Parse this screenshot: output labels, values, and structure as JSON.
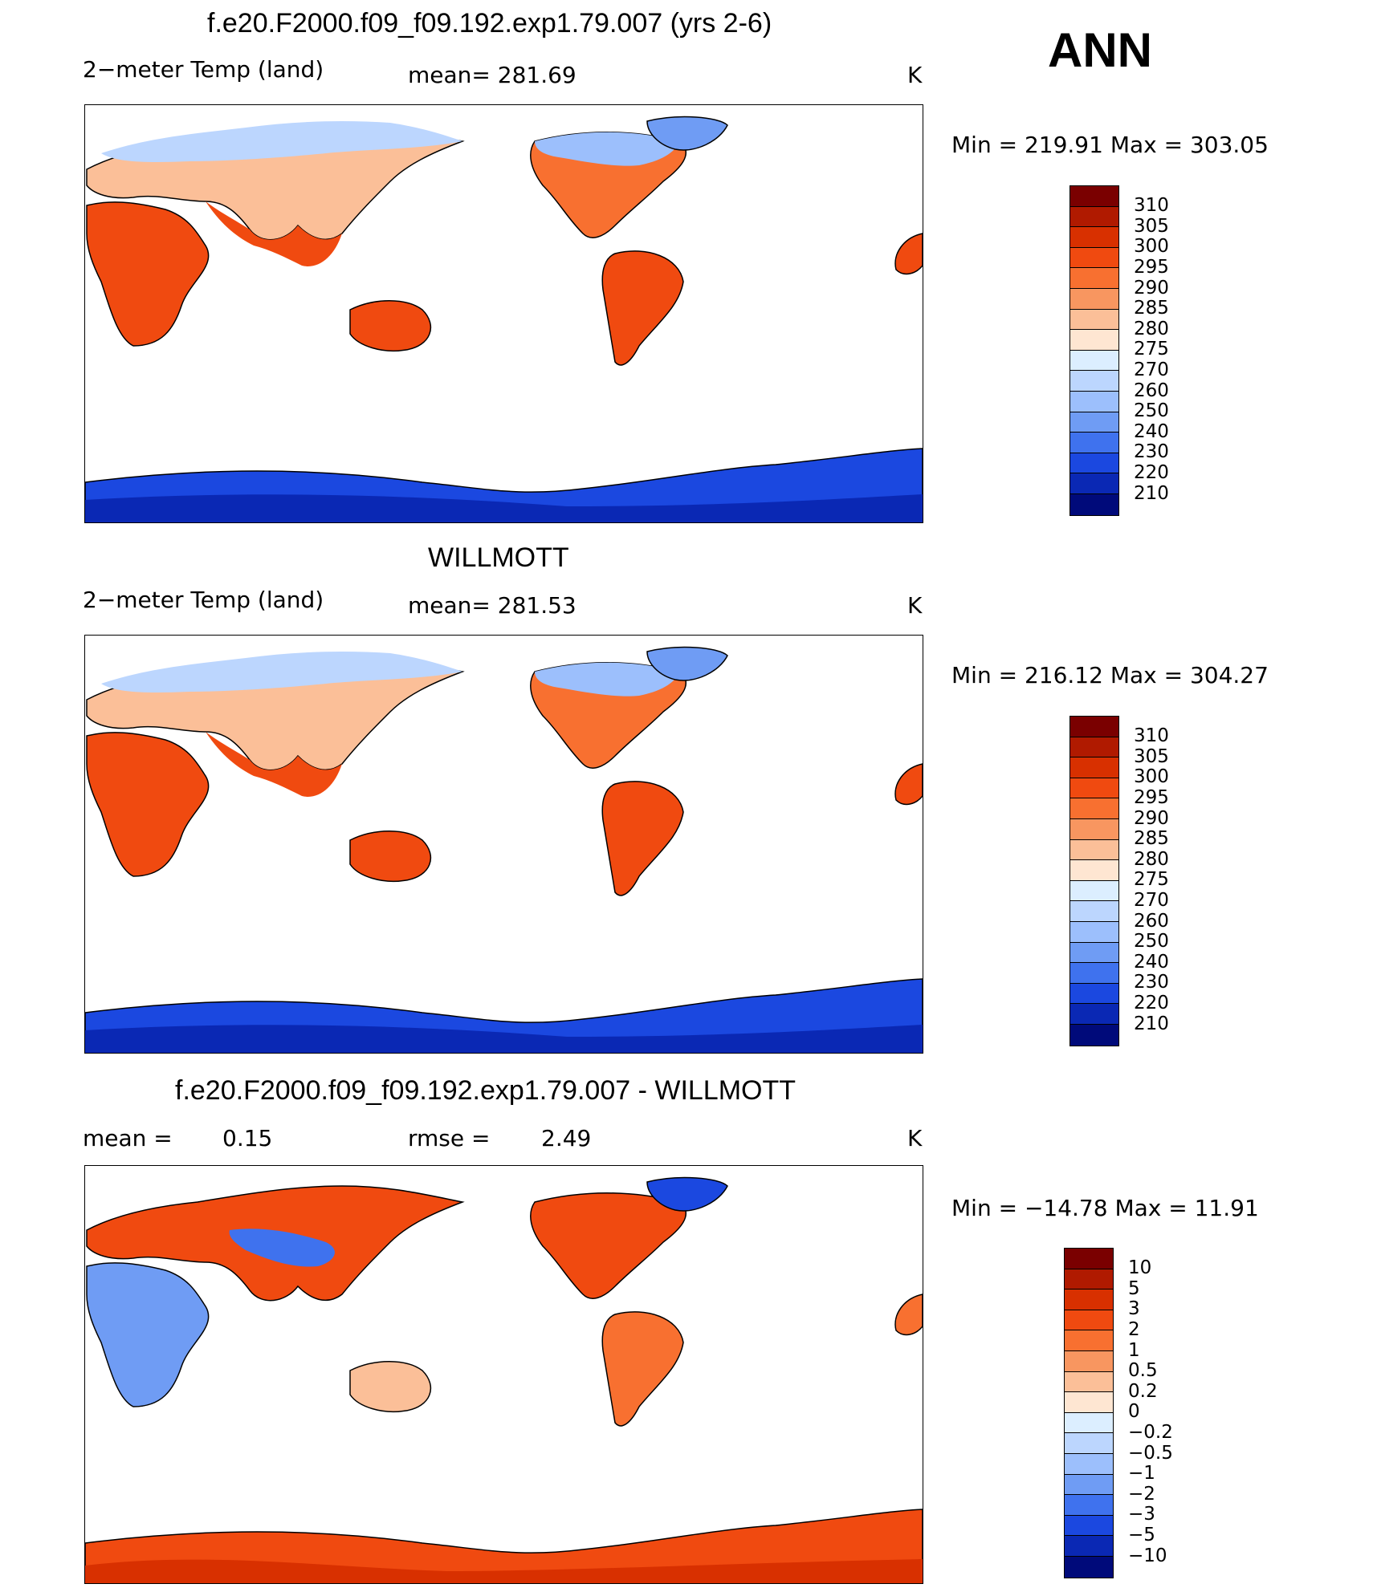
{
  "season": "ANN",
  "panels": [
    {
      "title": "f.e20.F2000.f09_f09.192.exp1.79.007 (yrs 2-6)",
      "left_label": "2−meter Temp (land)",
      "center_label": "mean= 281.69",
      "units": "K",
      "minmax": "Min = 219.91 Max = 303.05",
      "palette": "abs"
    },
    {
      "title": "WILLMOTT",
      "left_label": "2−meter Temp (land)",
      "center_label": "mean= 281.53",
      "units": "K",
      "minmax": "Min = 216.12 Max = 304.27",
      "palette": "abs"
    },
    {
      "title": "f.e20.F2000.f09_f09.192.exp1.79.007 - WILLMOTT",
      "left_label": "mean =",
      "left_value": "0.15",
      "center_label": "rmse =",
      "center_value": "2.49",
      "units": "K",
      "minmax": "Min = −14.78 Max =  11.91",
      "palette": "diff"
    }
  ],
  "legend_abs": {
    "labels": [
      "310",
      "305",
      "300",
      "295",
      "290",
      "285",
      "280",
      "275",
      "270",
      "260",
      "250",
      "240",
      "230",
      "220",
      "210"
    ],
    "colors": [
      "#7a0000",
      "#b01a00",
      "#d83000",
      "#f04a10",
      "#f87030",
      "#f89660",
      "#fbbf98",
      "#fee6d2",
      "#dceeff",
      "#bcd6fe",
      "#9cbffc",
      "#6f9cf4",
      "#3f72ee",
      "#1b48e0",
      "#0a28b4",
      "#000a7a"
    ]
  },
  "legend_diff": {
    "labels": [
      "10",
      "5",
      "3",
      "2",
      "1",
      "0.5",
      "0.2",
      "0",
      "−0.2",
      "−0.5",
      "−1",
      "−2",
      "−3",
      "−5",
      "−10"
    ],
    "colors": [
      "#7a0000",
      "#b01a00",
      "#d83000",
      "#f04a10",
      "#f87030",
      "#f89660",
      "#fbbf98",
      "#fee6d2",
      "#dceeff",
      "#bcd6fe",
      "#9cbffc",
      "#6f9cf4",
      "#3f72ee",
      "#1b48e0",
      "#0a28b4",
      "#000a7a"
    ]
  }
}
